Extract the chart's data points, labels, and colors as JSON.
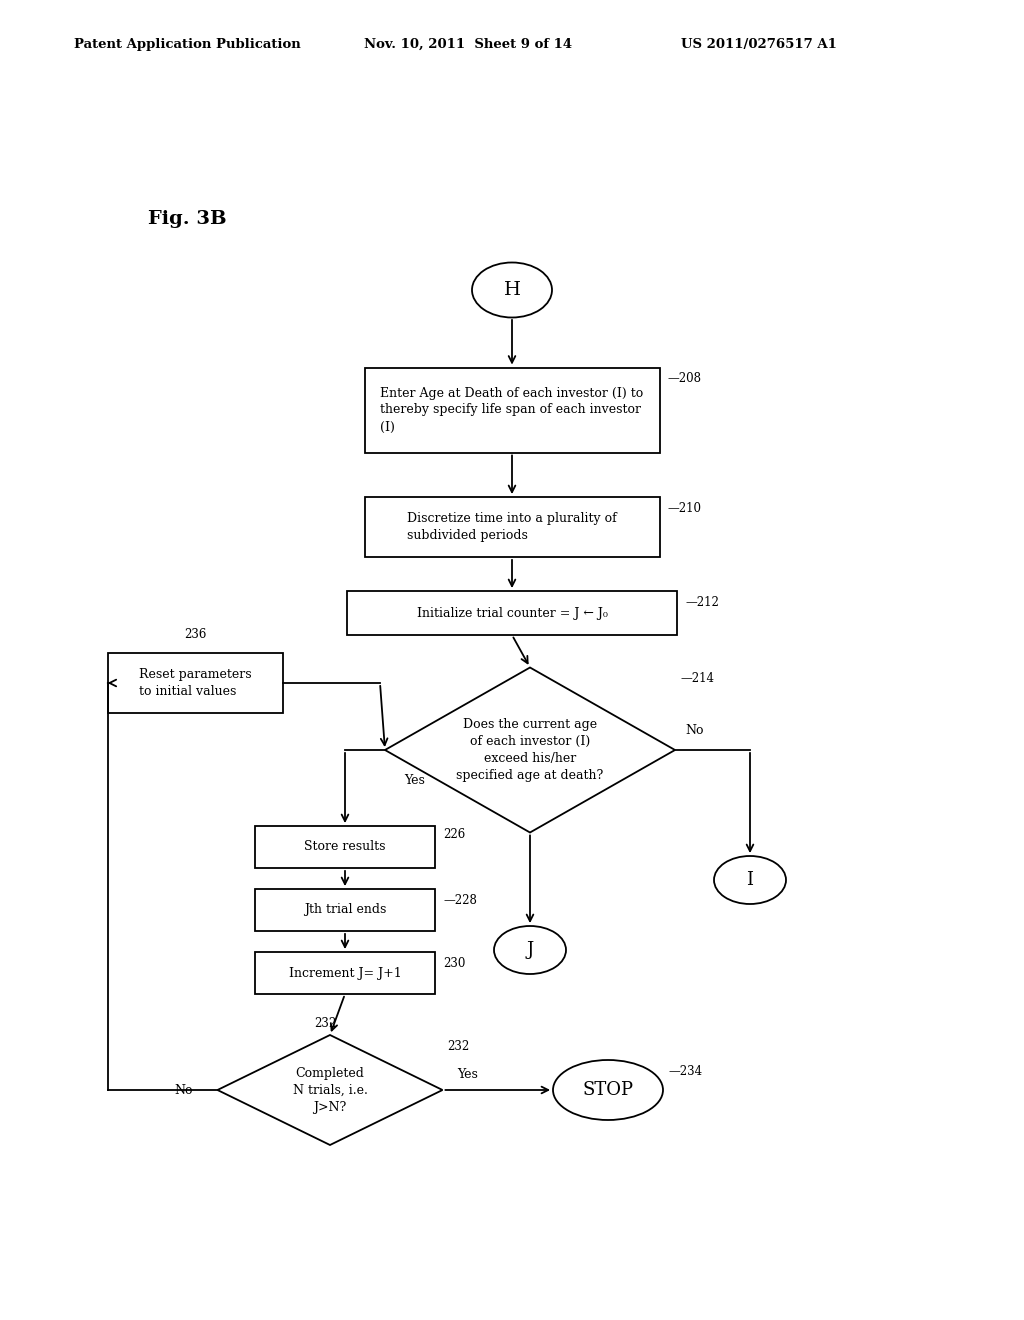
{
  "title": "Fig. 3B",
  "header_left": "Patent Application Publication",
  "header_mid": "Nov. 10, 2011  Sheet 9 of 14",
  "header_right": "US 2011/0276517 A1",
  "background": "#ffffff",
  "text_color": "#000000",
  "line_color": "#000000",
  "line_width": 1.3,
  "fig_w": 10.24,
  "fig_h": 13.2
}
